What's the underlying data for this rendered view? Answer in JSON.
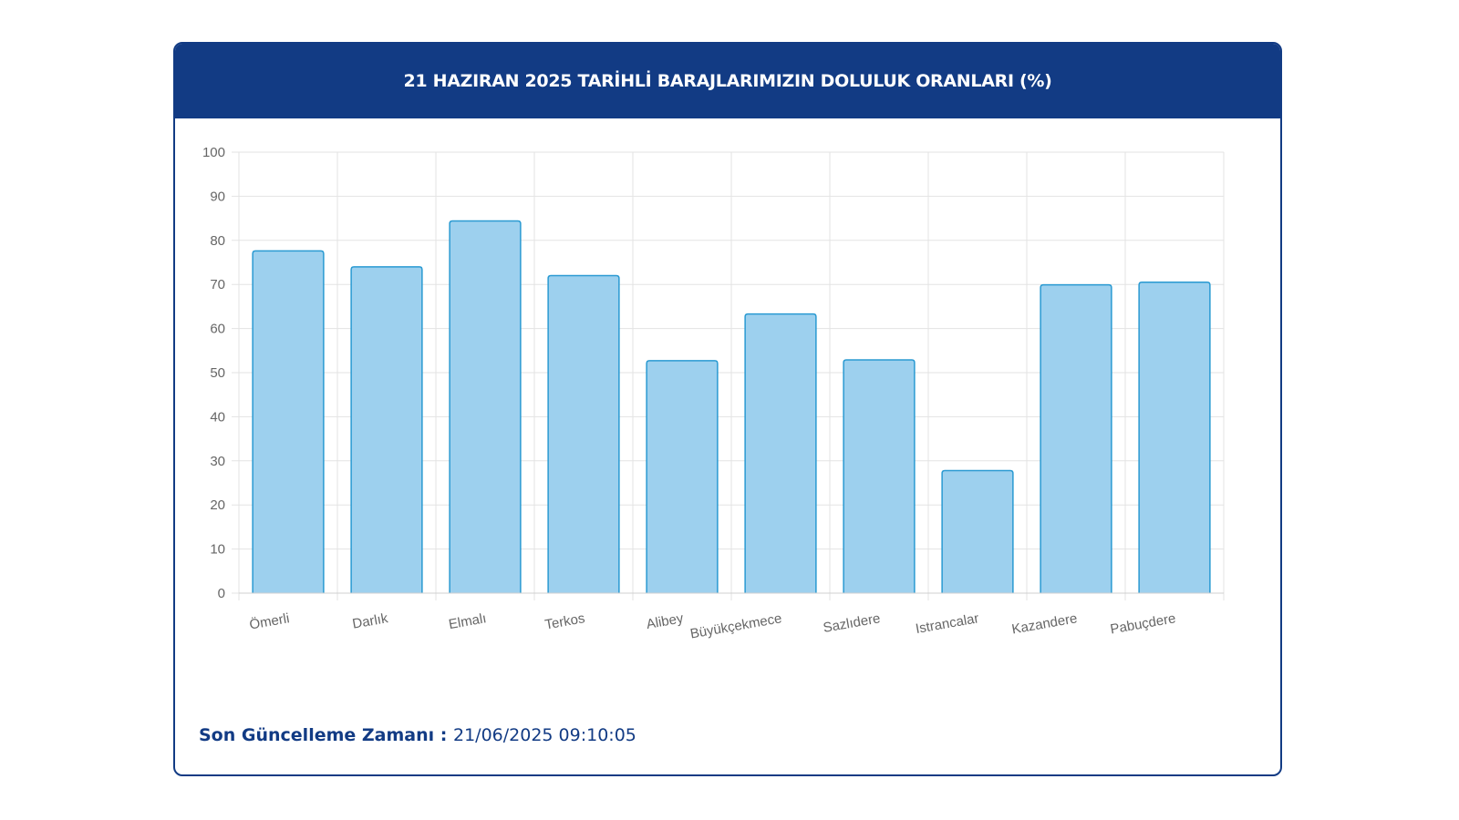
{
  "header": {
    "title": "21 HAZIRAN 2025 TARİHLİ BARAJLARIMIZIN DOLULUK ORANLARI (%)"
  },
  "footer": {
    "label": "Son Güncelleme Zamanı",
    "separator": " : ",
    "value": "21/06/2025 09:10:05"
  },
  "colors": {
    "header_bg": "#123b84",
    "bar_fill": "#9dd0ee",
    "bar_stroke": "#2a9ad2",
    "grid": "#e3e3e3",
    "tick_text": "#666666"
  },
  "chart_data": {
    "type": "bar",
    "title": "21 HAZIRAN 2025 TARİHLİ BARAJLARIMIZIN DOLULUK ORANLARI (%)",
    "xlabel": "",
    "ylabel": "",
    "categories": [
      "Ömerli",
      "Darlık",
      "Elmalı",
      "Terkos",
      "Alibey",
      "Büyükçekmece",
      "Sazlıdere",
      "Istrancalar",
      "Kazandere",
      "Pabuçdere"
    ],
    "values": [
      77.6,
      74.0,
      84.4,
      72.0,
      52.7,
      63.3,
      52.9,
      27.8,
      69.9,
      70.5
    ],
    "ylim": [
      0,
      100
    ],
    "yticks": [
      0,
      10,
      20,
      30,
      40,
      50,
      60,
      70,
      80,
      90,
      100
    ],
    "grid": true,
    "legend": "none"
  }
}
